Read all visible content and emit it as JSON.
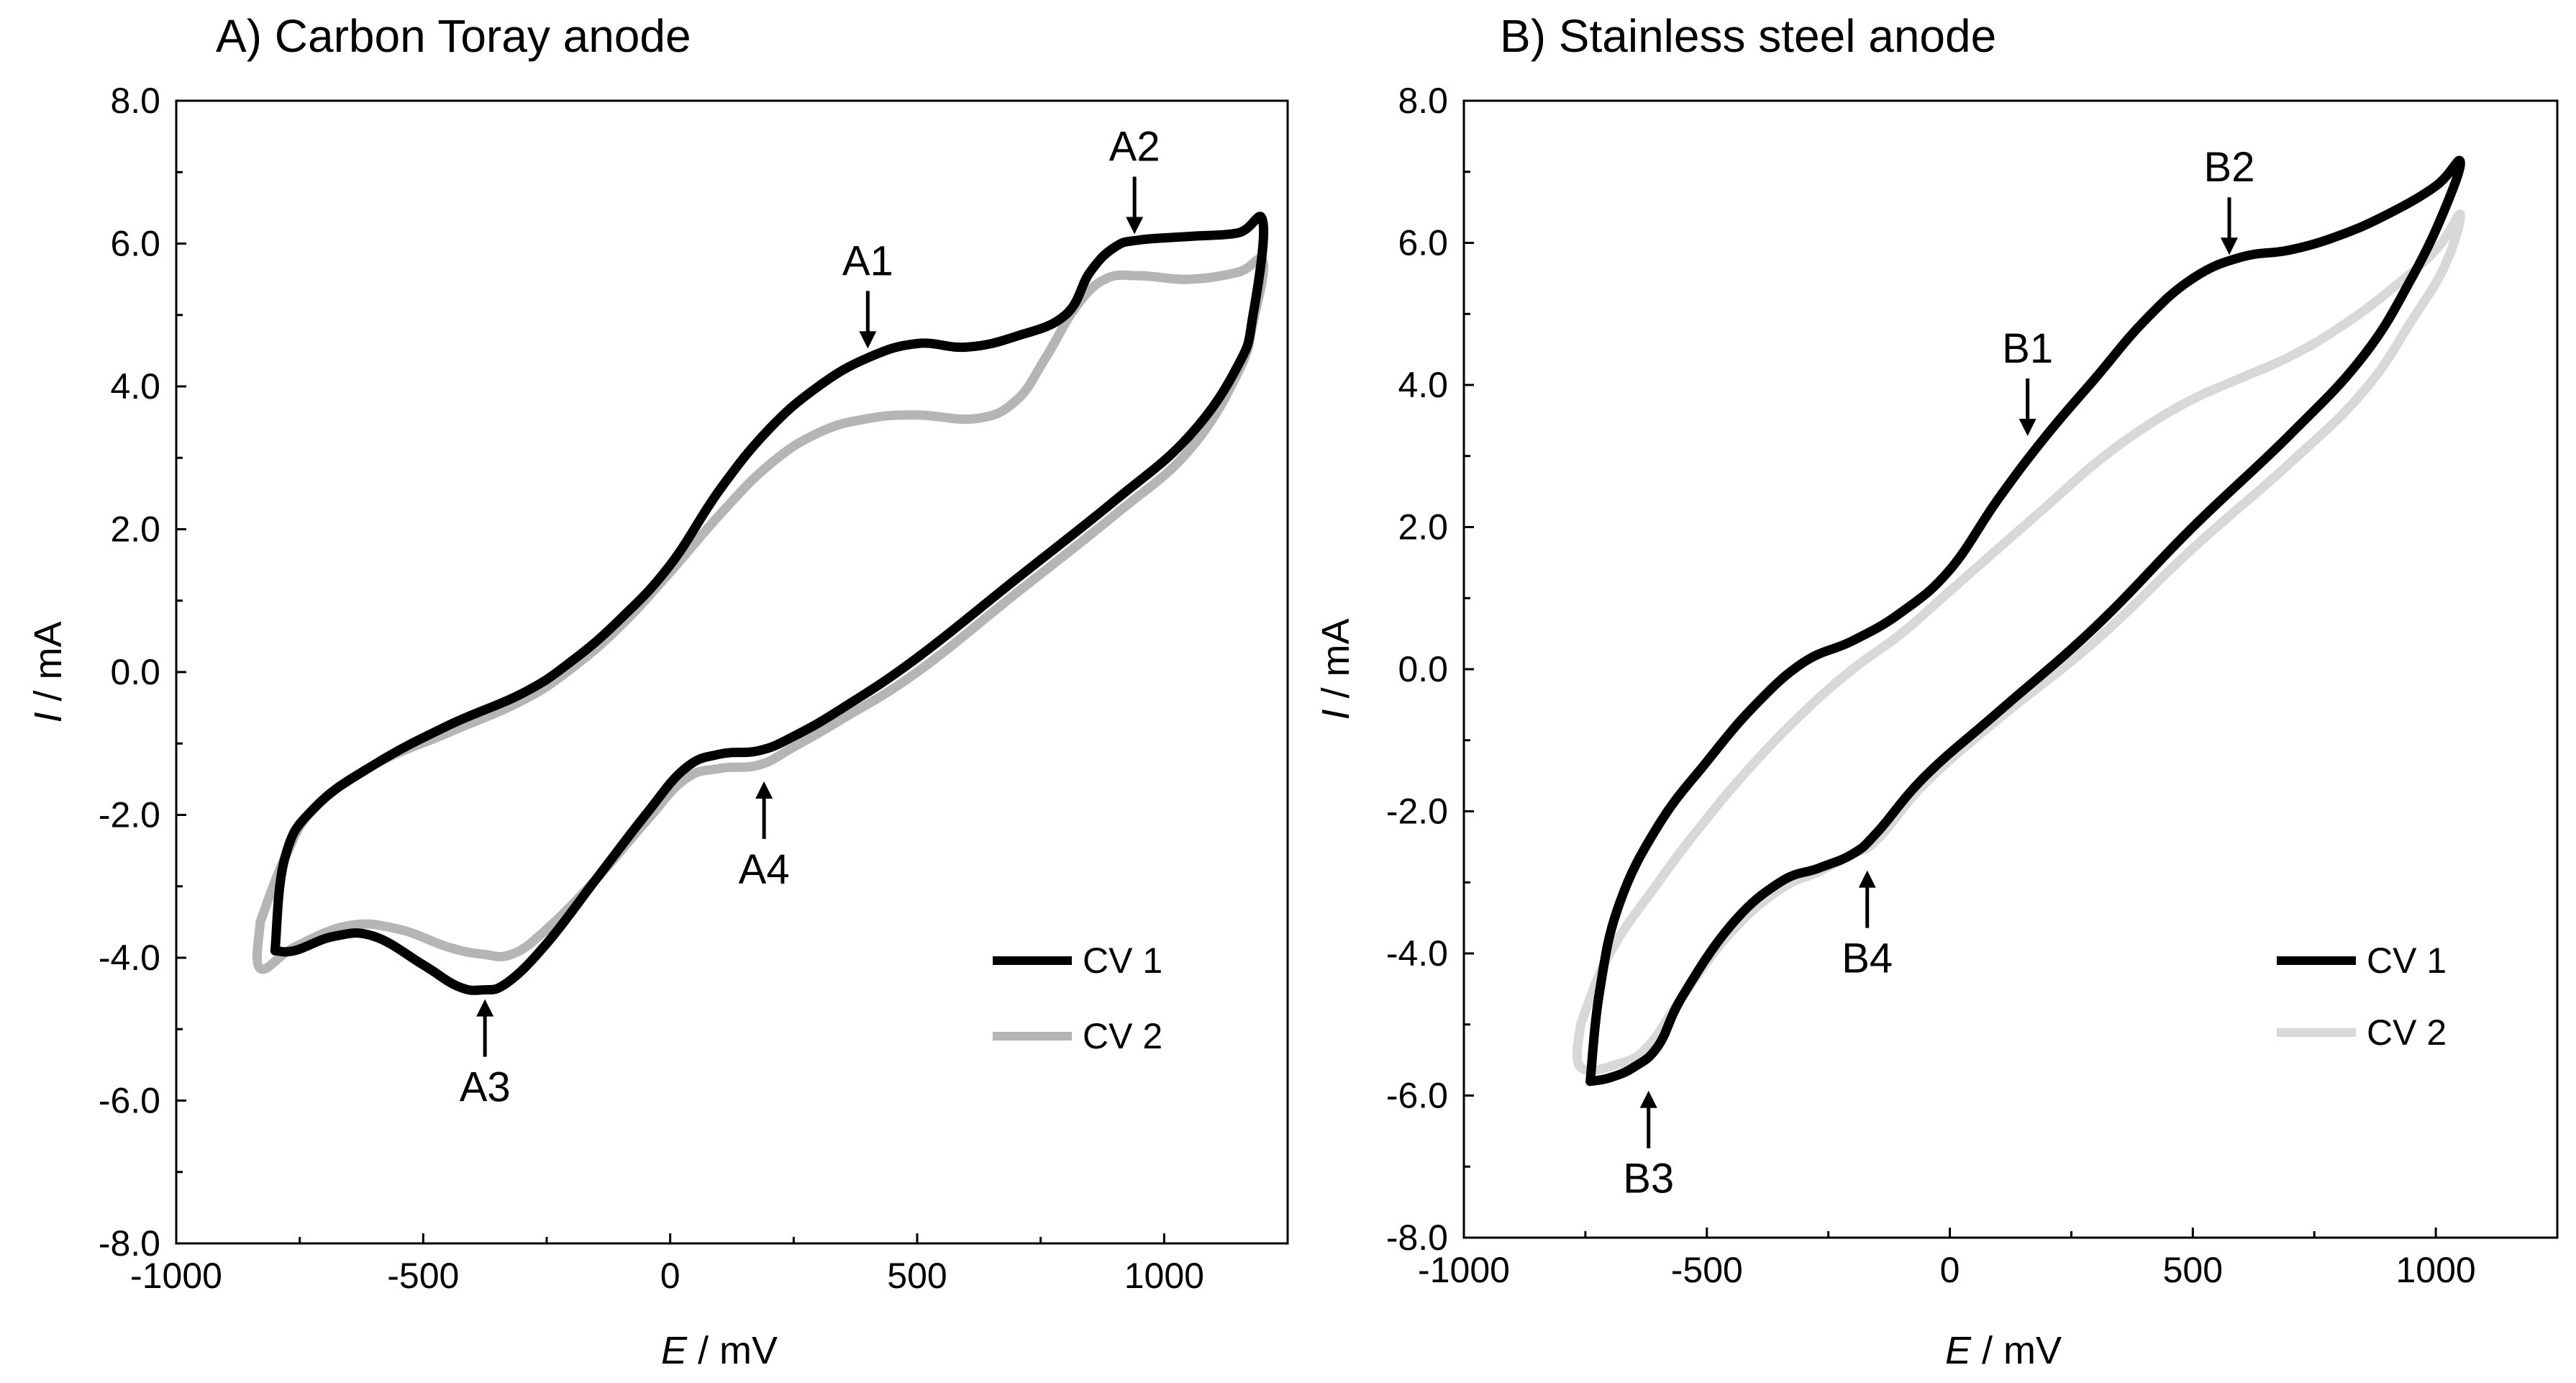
{
  "chart_data": [
    {
      "type": "line",
      "title": "A) Carbon Toray anode",
      "xlabel_var": "E",
      "xlabel_unit": " / mV",
      "ylabel_var": "I",
      "ylabel_unit": " / mA",
      "xlim": [
        -1000,
        1250
      ],
      "ylim": [
        -8,
        8
      ],
      "xticks": [
        -1000,
        -500,
        0,
        500,
        1000
      ],
      "xtick_labels": [
        "-1000",
        "-500",
        "0",
        "500",
        "1000"
      ],
      "yticks": [
        -8,
        -6,
        -4,
        -2,
        0,
        2,
        4,
        6,
        8
      ],
      "ytick_labels": [
        "-8.0",
        "-6.0",
        "-4.0",
        "-2.0",
        "0.0",
        "2.0",
        "4.0",
        "6.0",
        "8.0"
      ],
      "legend_position": "bottom-right",
      "series": [
        {
          "name": "CV 1",
          "color": "#000000",
          "points": [
            [
              -800,
              -3.9
            ],
            [
              -780,
              -2.6
            ],
            [
              -720,
              -1.9
            ],
            [
              -600,
              -1.3
            ],
            [
              -450,
              -0.75
            ],
            [
              -300,
              -0.3
            ],
            [
              -200,
              0.15
            ],
            [
              -100,
              0.75
            ],
            [
              0,
              1.5
            ],
            [
              100,
              2.55
            ],
            [
              200,
              3.4
            ],
            [
              300,
              4.0
            ],
            [
              400,
              4.4
            ],
            [
              500,
              4.6
            ],
            [
              600,
              4.55
            ],
            [
              700,
              4.7
            ],
            [
              800,
              5.0
            ],
            [
              850,
              5.6
            ],
            [
              900,
              5.95
            ],
            [
              950,
              6.05
            ],
            [
              1050,
              6.1
            ],
            [
              1150,
              6.15
            ],
            [
              1200,
              6.3
            ],
            [
              1180,
              5.0
            ],
            [
              1150,
              4.3
            ],
            [
              1050,
              3.3
            ],
            [
              900,
              2.4
            ],
            [
              700,
              1.3
            ],
            [
              500,
              0.2
            ],
            [
              350,
              -0.5
            ],
            [
              250,
              -0.9
            ],
            [
              180,
              -1.1
            ],
            [
              100,
              -1.15
            ],
            [
              30,
              -1.35
            ],
            [
              -50,
              -2.0
            ],
            [
              -150,
              -2.9
            ],
            [
              -250,
              -3.8
            ],
            [
              -330,
              -4.35
            ],
            [
              -380,
              -4.45
            ],
            [
              -430,
              -4.4
            ],
            [
              -500,
              -4.1
            ],
            [
              -600,
              -3.7
            ],
            [
              -680,
              -3.7
            ],
            [
              -760,
              -3.9
            ],
            [
              -800,
              -3.9
            ]
          ]
        },
        {
          "name": "CV 2",
          "color": "#b5b5b5",
          "points": [
            [
              -830,
              -3.5
            ],
            [
              -780,
              -2.6
            ],
            [
              -720,
              -1.9
            ],
            [
              -600,
              -1.3
            ],
            [
              -450,
              -0.85
            ],
            [
              -300,
              -0.4
            ],
            [
              -200,
              0.05
            ],
            [
              -100,
              0.65
            ],
            [
              0,
              1.4
            ],
            [
              100,
              2.2
            ],
            [
              200,
              2.9
            ],
            [
              300,
              3.35
            ],
            [
              400,
              3.55
            ],
            [
              500,
              3.6
            ],
            [
              620,
              3.55
            ],
            [
              700,
              3.8
            ],
            [
              760,
              4.4
            ],
            [
              820,
              5.1
            ],
            [
              880,
              5.5
            ],
            [
              950,
              5.55
            ],
            [
              1050,
              5.5
            ],
            [
              1150,
              5.6
            ],
            [
              1200,
              5.75
            ],
            [
              1180,
              4.9
            ],
            [
              1150,
              4.2
            ],
            [
              1050,
              3.1
            ],
            [
              900,
              2.2
            ],
            [
              700,
              1.1
            ],
            [
              500,
              0.0
            ],
            [
              350,
              -0.65
            ],
            [
              250,
              -1.05
            ],
            [
              180,
              -1.3
            ],
            [
              100,
              -1.35
            ],
            [
              30,
              -1.5
            ],
            [
              -50,
              -2.1
            ],
            [
              -150,
              -2.9
            ],
            [
              -250,
              -3.6
            ],
            [
              -320,
              -3.95
            ],
            [
              -380,
              -3.95
            ],
            [
              -450,
              -3.85
            ],
            [
              -550,
              -3.6
            ],
            [
              -650,
              -3.55
            ],
            [
              -760,
              -3.85
            ],
            [
              -830,
              -4.15
            ],
            [
              -830,
              -3.5
            ]
          ]
        }
      ],
      "annotations": [
        {
          "label": "A1",
          "x": 400,
          "y": 4.45,
          "direction": "down"
        },
        {
          "label": "A2",
          "x": 940,
          "y": 6.05,
          "direction": "down"
        },
        {
          "label": "A3",
          "x": -375,
          "y": -4.5,
          "direction": "up"
        },
        {
          "label": "A4",
          "x": 190,
          "y": -1.45,
          "direction": "up"
        }
      ]
    },
    {
      "type": "line",
      "title": "B) Stainless steel anode",
      "xlabel_var": "E",
      "xlabel_unit": " / mV",
      "ylabel_var": "I",
      "ylabel_unit": " / mA",
      "xlim": [
        -1000,
        1250
      ],
      "ylim": [
        -8,
        8
      ],
      "xticks": [
        -1000,
        -500,
        0,
        500,
        1000
      ],
      "xtick_labels": [
        "-1000",
        "-500",
        "0",
        "500",
        "1000"
      ],
      "yticks": [
        -8,
        -6,
        -4,
        -2,
        0,
        2,
        4,
        6,
        8
      ],
      "ytick_labels": [
        "-8.0",
        "-6.0",
        "-4.0",
        "-2.0",
        "0.0",
        "2.0",
        "4.0",
        "6.0",
        "8.0"
      ],
      "legend_position": "bottom-right",
      "series": [
        {
          "name": "CV 1",
          "color": "#000000",
          "points": [
            [
              -740,
              -5.8
            ],
            [
              -720,
              -4.5
            ],
            [
              -680,
              -3.3
            ],
            [
              -600,
              -2.2
            ],
            [
              -500,
              -1.3
            ],
            [
              -400,
              -0.5
            ],
            [
              -300,
              0.1
            ],
            [
              -200,
              0.4
            ],
            [
              -100,
              0.8
            ],
            [
              0,
              1.4
            ],
            [
              100,
              2.4
            ],
            [
              200,
              3.3
            ],
            [
              300,
              4.1
            ],
            [
              400,
              4.9
            ],
            [
              500,
              5.5
            ],
            [
              600,
              5.8
            ],
            [
              700,
              5.9
            ],
            [
              800,
              6.1
            ],
            [
              900,
              6.4
            ],
            [
              1000,
              6.8
            ],
            [
              1050,
              7.15
            ],
            [
              1020,
              6.5
            ],
            [
              950,
              5.5
            ],
            [
              850,
              4.4
            ],
            [
              700,
              3.3
            ],
            [
              500,
              2.0
            ],
            [
              300,
              0.6
            ],
            [
              100,
              -0.6
            ],
            [
              -50,
              -1.5
            ],
            [
              -150,
              -2.3
            ],
            [
              -200,
              -2.6
            ],
            [
              -270,
              -2.8
            ],
            [
              -350,
              -3.0
            ],
            [
              -450,
              -3.6
            ],
            [
              -550,
              -4.6
            ],
            [
              -600,
              -5.3
            ],
            [
              -650,
              -5.6
            ],
            [
              -700,
              -5.75
            ],
            [
              -740,
              -5.8
            ]
          ]
        },
        {
          "name": "CV 2",
          "color": "#d8d8d8",
          "points": [
            [
              -760,
              -5.0
            ],
            [
              -700,
              -4.0
            ],
            [
              -600,
              -3.0
            ],
            [
              -500,
              -2.1
            ],
            [
              -400,
              -1.3
            ],
            [
              -300,
              -0.6
            ],
            [
              -200,
              0.0
            ],
            [
              -100,
              0.5
            ],
            [
              0,
              1.1
            ],
            [
              100,
              1.7
            ],
            [
              200,
              2.3
            ],
            [
              300,
              2.9
            ],
            [
              400,
              3.4
            ],
            [
              500,
              3.8
            ],
            [
              600,
              4.1
            ],
            [
              700,
              4.4
            ],
            [
              800,
              4.8
            ],
            [
              900,
              5.3
            ],
            [
              1000,
              5.9
            ],
            [
              1050,
              6.4
            ],
            [
              1020,
              5.7
            ],
            [
              950,
              4.9
            ],
            [
              850,
              3.9
            ],
            [
              700,
              2.9
            ],
            [
              500,
              1.7
            ],
            [
              300,
              0.4
            ],
            [
              100,
              -0.7
            ],
            [
              -50,
              -1.6
            ],
            [
              -150,
              -2.4
            ],
            [
              -200,
              -2.6
            ],
            [
              -270,
              -2.85
            ],
            [
              -350,
              -3.1
            ],
            [
              -450,
              -3.7
            ],
            [
              -550,
              -4.6
            ],
            [
              -620,
              -5.3
            ],
            [
              -680,
              -5.55
            ],
            [
              -760,
              -5.6
            ],
            [
              -760,
              -5.0
            ]
          ]
        }
      ],
      "annotations": [
        {
          "label": "B1",
          "x": 160,
          "y": 3.2,
          "direction": "down"
        },
        {
          "label": "B2",
          "x": 575,
          "y": 5.75,
          "direction": "down"
        },
        {
          "label": "B3",
          "x": -620,
          "y": -5.85,
          "direction": "up"
        },
        {
          "label": "B4",
          "x": -170,
          "y": -2.75,
          "direction": "up"
        }
      ]
    }
  ]
}
